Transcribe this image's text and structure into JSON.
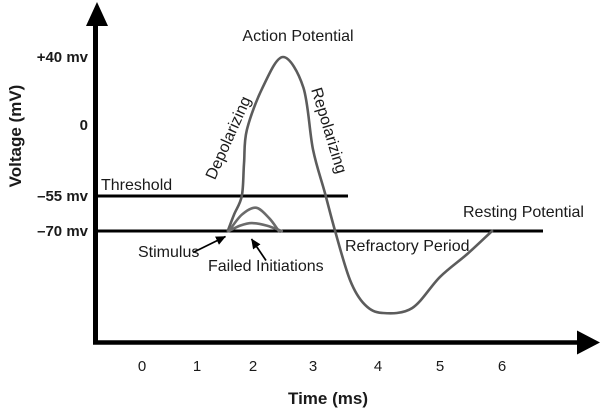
{
  "chart_data": {
    "type": "line",
    "title": "Action Potential",
    "xlabel": "Time (ms)",
    "ylabel": "Voltage (mV)",
    "x_ticks": [
      0,
      1,
      2,
      3,
      4,
      5,
      6
    ],
    "y_ticks": [
      {
        "label": "+40 mv",
        "value": 40
      },
      {
        "label": "0",
        "value": 0
      },
      {
        "label": "–55 mv",
        "value": -55
      },
      {
        "label": "–70 mv",
        "value": -70
      }
    ],
    "xlim": [
      0,
      6.7
    ],
    "ylim": [
      -95,
      55
    ],
    "grid": false,
    "legend": "none",
    "reference_lines": [
      {
        "label": "Threshold",
        "value": -55
      },
      {
        "label": "Resting Potential",
        "value": -70
      }
    ],
    "annotations": {
      "depolarizing": "Depolarizing",
      "repolarizing": "Repolarizing",
      "threshold": "Threshold",
      "resting_potential": "Resting Potential",
      "stimulus": "Stimulus",
      "failed_initiations": "Failed Initiations",
      "refractory_period": "Refractory Period"
    },
    "key_points": {
      "resting_mv": -70,
      "threshold_mv": -55,
      "peak_mv": 40,
      "hyperpolarization_min_mv_est": -95,
      "stimulus_time_ms": 1.55,
      "peak_time_ms": 2.5,
      "trough_time_ms": 4.1,
      "return_to_rest_time_ms": 5.84
    },
    "series": [
      {
        "name": "action-potential-curve",
        "color": "#5c5c5c",
        "points": [
          [
            1.55,
            -70
          ],
          [
            1.66,
            -63
          ],
          [
            1.8,
            -55
          ],
          [
            1.84,
            -30
          ],
          [
            1.89,
            -4
          ],
          [
            2.16,
            22
          ],
          [
            2.5,
            40
          ],
          [
            2.84,
            22
          ],
          [
            3.0,
            -19
          ],
          [
            3.18,
            -52
          ],
          [
            3.34,
            -70
          ],
          [
            3.57,
            -85
          ],
          [
            3.8,
            -92.5
          ],
          [
            4.08,
            -95
          ],
          [
            4.55,
            -93.5
          ],
          [
            5.0,
            -84
          ],
          [
            5.44,
            -77
          ],
          [
            5.84,
            -70
          ]
        ]
      },
      {
        "name": "failed-initiation-large",
        "color": "#6b6b6b",
        "points": [
          [
            1.57,
            -70
          ],
          [
            1.8,
            -63
          ],
          [
            2.05,
            -60
          ],
          [
            2.27,
            -64.5
          ],
          [
            2.43,
            -70
          ]
        ]
      },
      {
        "name": "failed-initiation-small",
        "color": "#6b6b6b",
        "points": [
          [
            1.57,
            -70
          ],
          [
            1.77,
            -67.7
          ],
          [
            1.98,
            -66.6
          ],
          [
            2.23,
            -67.7
          ],
          [
            2.48,
            -70
          ]
        ]
      }
    ],
    "colors": {
      "curve": "#5c5c5c",
      "axis": "#000000",
      "text": "#1a1a1a",
      "background": "#ffffff"
    }
  }
}
